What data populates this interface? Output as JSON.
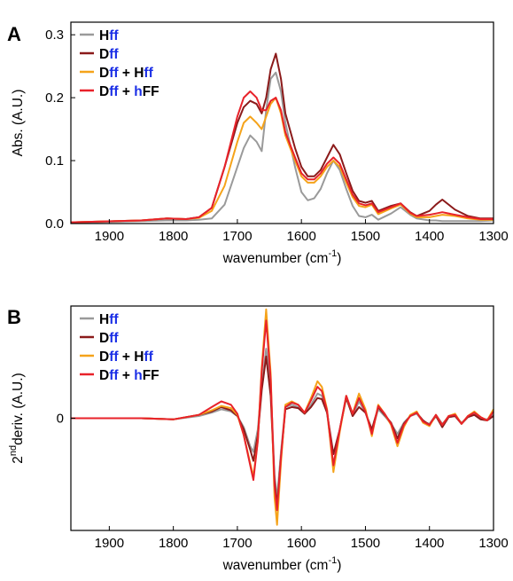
{
  "chart_data": [
    {
      "panel": "A",
      "type": "line",
      "xlabel": "wavenumber (cm",
      "xlabel_sup": "-1",
      "xlabel_end": ")",
      "ylabel": "Abs. (A.U.)",
      "xlim": [
        1960,
        1300
      ],
      "ylim": [
        0,
        0.32
      ],
      "x_reversed": true,
      "xticks": [
        1900,
        1800,
        1700,
        1600,
        1500,
        1400,
        1300
      ],
      "yticks": [
        0.0,
        0.1,
        0.2,
        0.3
      ],
      "ytick_labels": [
        "0.0",
        "0.1",
        "0.2",
        "0.3"
      ],
      "legend_position": "top-left",
      "series": [
        {
          "name": "Hff",
          "color": "#9a9a9a",
          "x": [
            1960,
            1850,
            1810,
            1780,
            1760,
            1740,
            1720,
            1700,
            1690,
            1680,
            1670,
            1662,
            1655,
            1648,
            1640,
            1632,
            1625,
            1610,
            1600,
            1590,
            1580,
            1570,
            1560,
            1550,
            1540,
            1530,
            1520,
            1510,
            1500,
            1490,
            1480,
            1460,
            1445,
            1430,
            1420,
            1400,
            1390,
            1380,
            1360,
            1340,
            1320,
            1300
          ],
          "y": [
            0.001,
            0.004,
            0.005,
            0.005,
            0.006,
            0.008,
            0.03,
            0.09,
            0.12,
            0.14,
            0.13,
            0.115,
            0.18,
            0.23,
            0.24,
            0.21,
            0.16,
            0.09,
            0.05,
            0.037,
            0.04,
            0.055,
            0.08,
            0.1,
            0.085,
            0.055,
            0.028,
            0.012,
            0.01,
            0.014,
            0.006,
            0.016,
            0.026,
            0.014,
            0.008,
            0.005,
            0.005,
            0.004,
            0.004,
            0.004,
            0.004,
            0.005
          ]
        },
        {
          "name": "Dff",
          "color": "#8b1a1a",
          "x": [
            1960,
            1850,
            1810,
            1780,
            1760,
            1740,
            1720,
            1700,
            1690,
            1680,
            1670,
            1662,
            1655,
            1648,
            1640,
            1632,
            1625,
            1610,
            1600,
            1590,
            1580,
            1570,
            1560,
            1550,
            1540,
            1530,
            1520,
            1510,
            1500,
            1490,
            1480,
            1460,
            1445,
            1430,
            1420,
            1400,
            1390,
            1380,
            1360,
            1340,
            1320,
            1300
          ],
          "y": [
            0.002,
            0.005,
            0.008,
            0.007,
            0.01,
            0.025,
            0.09,
            0.16,
            0.185,
            0.195,
            0.19,
            0.175,
            0.2,
            0.245,
            0.27,
            0.23,
            0.175,
            0.12,
            0.09,
            0.075,
            0.075,
            0.085,
            0.105,
            0.125,
            0.11,
            0.08,
            0.052,
            0.036,
            0.033,
            0.036,
            0.02,
            0.028,
            0.032,
            0.018,
            0.012,
            0.02,
            0.03,
            0.038,
            0.022,
            0.012,
            0.008,
            0.008
          ]
        },
        {
          "name": "Dff + Hff",
          "color": "#f5a31a",
          "x": [
            1960,
            1850,
            1810,
            1780,
            1760,
            1740,
            1720,
            1700,
            1690,
            1680,
            1670,
            1662,
            1655,
            1648,
            1640,
            1632,
            1625,
            1610,
            1600,
            1590,
            1580,
            1570,
            1560,
            1550,
            1540,
            1530,
            1520,
            1510,
            1500,
            1490,
            1480,
            1460,
            1445,
            1430,
            1420,
            1400,
            1390,
            1380,
            1360,
            1340,
            1320,
            1300
          ],
          "y": [
            0.002,
            0.005,
            0.008,
            0.007,
            0.009,
            0.02,
            0.06,
            0.13,
            0.16,
            0.17,
            0.16,
            0.15,
            0.17,
            0.19,
            0.2,
            0.175,
            0.14,
            0.1,
            0.075,
            0.065,
            0.065,
            0.075,
            0.09,
            0.1,
            0.09,
            0.065,
            0.042,
            0.028,
            0.026,
            0.03,
            0.015,
            0.024,
            0.03,
            0.016,
            0.01,
            0.01,
            0.012,
            0.014,
            0.012,
            0.008,
            0.006,
            0.006
          ]
        },
        {
          "name": "Dff + hFF",
          "color": "#e8222a",
          "x": [
            1960,
            1850,
            1810,
            1780,
            1760,
            1740,
            1720,
            1700,
            1690,
            1680,
            1670,
            1662,
            1655,
            1648,
            1640,
            1632,
            1625,
            1610,
            1600,
            1590,
            1580,
            1570,
            1560,
            1550,
            1540,
            1530,
            1520,
            1510,
            1500,
            1490,
            1480,
            1460,
            1445,
            1430,
            1420,
            1400,
            1390,
            1380,
            1360,
            1340,
            1320,
            1300
          ],
          "y": [
            0.002,
            0.005,
            0.008,
            0.007,
            0.01,
            0.025,
            0.09,
            0.17,
            0.2,
            0.21,
            0.2,
            0.18,
            0.18,
            0.195,
            0.2,
            0.18,
            0.145,
            0.105,
            0.08,
            0.07,
            0.07,
            0.08,
            0.095,
            0.105,
            0.095,
            0.07,
            0.046,
            0.032,
            0.029,
            0.032,
            0.018,
            0.026,
            0.032,
            0.017,
            0.012,
            0.014,
            0.016,
            0.018,
            0.014,
            0.01,
            0.007,
            0.007
          ]
        }
      ]
    },
    {
      "panel": "B",
      "type": "line",
      "xlabel": "wavenumber (cm",
      "xlabel_sup": "-1",
      "xlabel_end": ")",
      "ylabel_sup": "nd",
      "ylabel_pre": "2",
      "ylabel": "deriv. (A.U.)",
      "xlim": [
        1960,
        1300
      ],
      "ylim": [
        -1.0,
        1.0
      ],
      "x_reversed": true,
      "xticks": [
        1900,
        1800,
        1700,
        1600,
        1500,
        1400,
        1300
      ],
      "yticks": [
        0
      ],
      "ytick_labels": [
        "0"
      ],
      "legend_position": "top-left",
      "series": [
        {
          "name": "Hff",
          "color": "#9a9a9a",
          "x": [
            1960,
            1850,
            1800,
            1760,
            1740,
            1725,
            1710,
            1700,
            1690,
            1680,
            1675,
            1668,
            1662,
            1655,
            1648,
            1642,
            1638,
            1632,
            1625,
            1615,
            1605,
            1595,
            1585,
            1575,
            1568,
            1560,
            1550,
            1540,
            1530,
            1520,
            1510,
            1500,
            1490,
            1480,
            1470,
            1460,
            1450,
            1440,
            1430,
            1420,
            1410,
            1400,
            1390,
            1380,
            1370,
            1360,
            1350,
            1340,
            1330,
            1320,
            1310,
            1300
          ],
          "y": [
            0,
            0,
            -0.01,
            0.02,
            0.05,
            0.08,
            0.06,
            0.02,
            -0.08,
            -0.25,
            -0.3,
            -0.1,
            0.3,
            0.62,
            0.3,
            -0.5,
            -0.72,
            -0.3,
            0.1,
            0.12,
            0.1,
            0.04,
            0.12,
            0.22,
            0.2,
            0.05,
            -0.42,
            -0.1,
            0.2,
            0.02,
            0.15,
            0.05,
            -0.12,
            0.08,
            0.02,
            -0.05,
            -0.14,
            -0.04,
            0.02,
            0.04,
            -0.03,
            -0.05,
            0.03,
            -0.05,
            0.01,
            0.02,
            -0.04,
            0.01,
            0.03,
            0,
            -0.01,
            0.03
          ]
        },
        {
          "name": "Dff",
          "color": "#8b1a1a",
          "x": [
            1960,
            1850,
            1800,
            1760,
            1740,
            1725,
            1710,
            1700,
            1690,
            1680,
            1675,
            1668,
            1662,
            1655,
            1648,
            1642,
            1638,
            1632,
            1625,
            1615,
            1605,
            1595,
            1585,
            1575,
            1568,
            1560,
            1550,
            1540,
            1530,
            1520,
            1510,
            1500,
            1490,
            1480,
            1470,
            1460,
            1450,
            1440,
            1430,
            1420,
            1410,
            1400,
            1390,
            1380,
            1370,
            1360,
            1350,
            1340,
            1330,
            1320,
            1310,
            1300
          ],
          "y": [
            0,
            0,
            -0.01,
            0.03,
            0.06,
            0.1,
            0.07,
            0.02,
            -0.1,
            -0.28,
            -0.38,
            -0.15,
            0.25,
            0.55,
            0.2,
            -0.55,
            -0.78,
            -0.35,
            0.08,
            0.1,
            0.09,
            0.04,
            0.1,
            0.18,
            0.17,
            0.05,
            -0.32,
            -0.1,
            0.18,
            0.02,
            0.1,
            0.05,
            -0.1,
            0.1,
            0.03,
            -0.04,
            -0.18,
            -0.05,
            0.02,
            0.05,
            -0.02,
            -0.06,
            0.02,
            -0.08,
            0.01,
            0.02,
            -0.05,
            0.01,
            0.03,
            -0.01,
            -0.02,
            0.02
          ]
        },
        {
          "name": "Dff + Hff",
          "color": "#f5a31a",
          "x": [
            1960,
            1850,
            1800,
            1760,
            1740,
            1725,
            1710,
            1700,
            1690,
            1680,
            1675,
            1668,
            1662,
            1655,
            1648,
            1642,
            1638,
            1632,
            1625,
            1615,
            1605,
            1595,
            1585,
            1575,
            1568,
            1560,
            1550,
            1540,
            1530,
            1520,
            1510,
            1500,
            1490,
            1480,
            1470,
            1460,
            1450,
            1440,
            1430,
            1420,
            1410,
            1400,
            1390,
            1380,
            1370,
            1360,
            1350,
            1340,
            1330,
            1320,
            1310,
            1300
          ],
          "y": [
            0,
            0,
            -0.01,
            0.03,
            0.07,
            0.11,
            0.09,
            0.03,
            -0.15,
            -0.4,
            -0.52,
            -0.2,
            0.45,
            0.97,
            0.4,
            -0.7,
            -0.95,
            -0.4,
            0.12,
            0.15,
            0.12,
            0.05,
            0.18,
            0.33,
            0.28,
            0.08,
            -0.48,
            -0.12,
            0.2,
            0.04,
            0.22,
            0.08,
            -0.16,
            0.12,
            0.04,
            -0.06,
            -0.25,
            -0.08,
            0.03,
            0.06,
            -0.04,
            -0.07,
            0.03,
            -0.06,
            0.02,
            0.04,
            -0.05,
            0.02,
            0.06,
            0.01,
            -0.02,
            0.08
          ]
        },
        {
          "name": "Dff + hFF",
          "color": "#e8222a",
          "x": [
            1960,
            1850,
            1800,
            1760,
            1740,
            1725,
            1710,
            1700,
            1690,
            1680,
            1675,
            1668,
            1662,
            1655,
            1648,
            1642,
            1638,
            1632,
            1625,
            1615,
            1605,
            1595,
            1585,
            1575,
            1568,
            1560,
            1550,
            1540,
            1530,
            1520,
            1510,
            1500,
            1490,
            1480,
            1470,
            1460,
            1450,
            1440,
            1430,
            1420,
            1410,
            1400,
            1390,
            1380,
            1370,
            1360,
            1350,
            1340,
            1330,
            1320,
            1310,
            1300
          ],
          "y": [
            0,
            0,
            -0.01,
            0.03,
            0.1,
            0.15,
            0.12,
            0.04,
            -0.15,
            -0.42,
            -0.55,
            -0.2,
            0.42,
            0.87,
            0.35,
            -0.6,
            -0.82,
            -0.35,
            0.1,
            0.14,
            0.12,
            0.05,
            0.16,
            0.28,
            0.24,
            0.07,
            -0.42,
            -0.1,
            0.2,
            0.04,
            0.18,
            0.06,
            -0.14,
            0.11,
            0.04,
            -0.05,
            -0.22,
            -0.06,
            0.02,
            0.05,
            -0.03,
            -0.06,
            0.03,
            -0.06,
            0.02,
            0.03,
            -0.05,
            0.02,
            0.05,
            0.01,
            -0.02,
            0.06
          ]
        }
      ]
    }
  ]
}
